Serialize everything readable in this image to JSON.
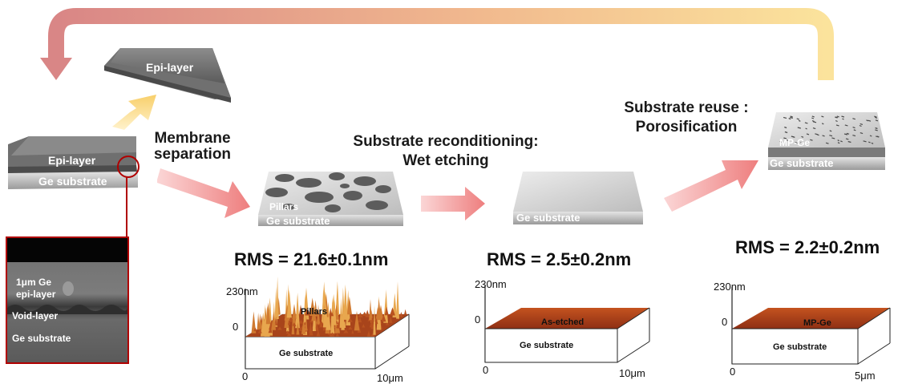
{
  "process": {
    "start": {
      "epi_label": "Epi-layer",
      "substrate_label": "Ge substrate"
    },
    "separated_label": "Epi-layer",
    "step1_label": "Membrane\nseparation",
    "step2_label": "Substrate reconditioning:\nWet etching",
    "step3_label": "Substrate reuse :\nPorosification"
  },
  "sem_inset": {
    "epi_label": "1μm Ge\nepi-layer",
    "void_label": "Void-layer",
    "substrate_label": "Ge substrate"
  },
  "stages": [
    {
      "surface_label": "Pillars",
      "substrate_label": "Ge substrate",
      "rms": "RMS = 21.6±0.1nm",
      "afm": {
        "z_top": "230nm",
        "z_zero": "0",
        "x_zero": "0",
        "x_max": "10μm",
        "surface_label": "Pillars",
        "substrate_label": "Ge substrate"
      }
    },
    {
      "substrate_label": "Ge substrate",
      "rms": "RMS = 2.5±0.2nm",
      "afm": {
        "z_top": "230nm",
        "z_zero": "0",
        "x_zero": "0",
        "x_max": "10μm",
        "surface_label": "As-etched",
        "substrate_label": "Ge substrate"
      }
    },
    {
      "surface_label": "MP-Ge",
      "substrate_label": "Ge substrate",
      "rms": "RMS = 2.2±0.2nm",
      "afm": {
        "z_top": "230nm",
        "z_zero": "0",
        "x_zero": "0",
        "x_max": "5μm",
        "surface_label": "MP-Ge",
        "substrate_label": "Ge substrate"
      }
    }
  ],
  "colors": {
    "arrow_pink": "#f08a8a",
    "arrow_yellow": "#f9d77e",
    "afm_surface": "#b4451c",
    "afm_peak": "#e6a246",
    "epi_gray": "#6f6f6f",
    "substrate_gray": "#c8c8c8"
  }
}
